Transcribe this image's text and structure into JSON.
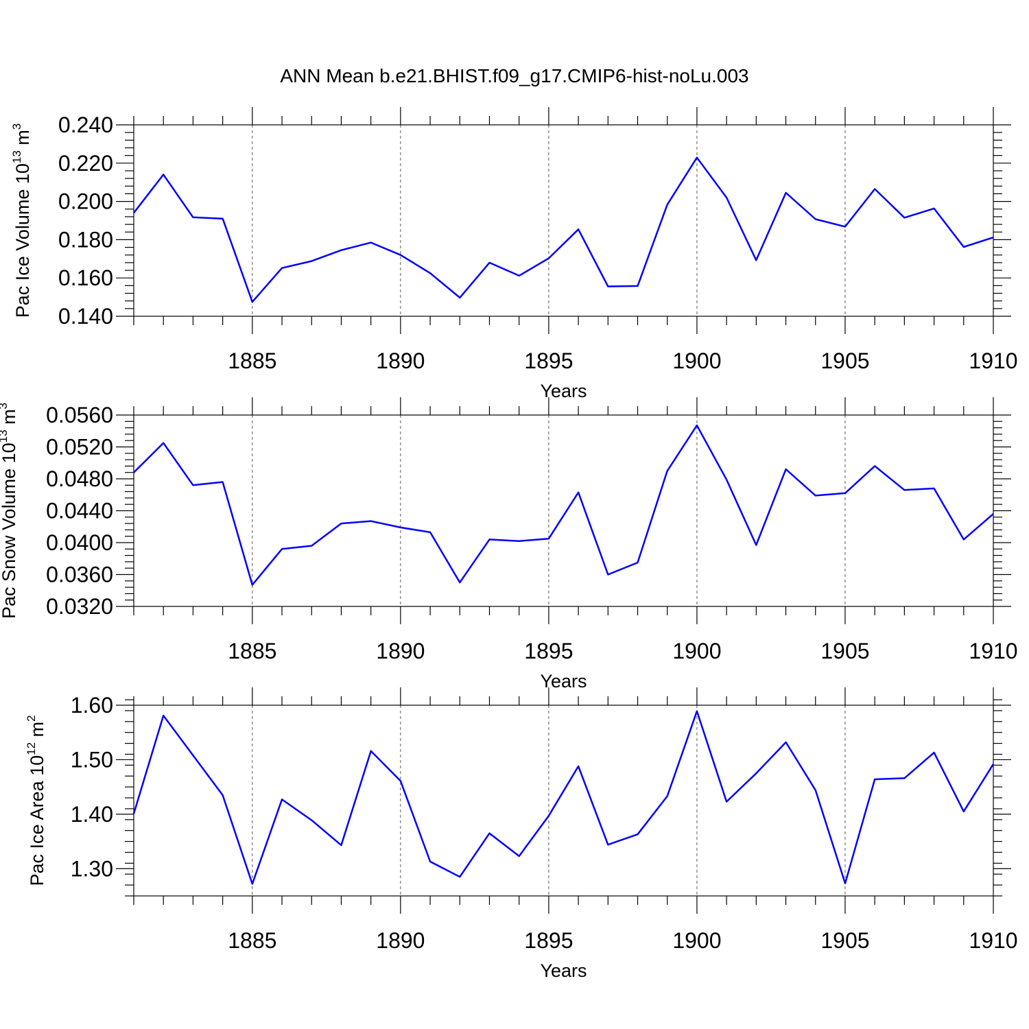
{
  "title": "ANN Mean b.e21.BHIST.f09_g17.CMIP6-hist-noLu.003",
  "colors": {
    "series": "#0000ff",
    "axis": "#000000",
    "grid": "#555555"
  },
  "chart_data": [
    {
      "type": "line",
      "id": "ice-volume",
      "ylabel": "Pac Ice Volume 10",
      "ylabel_sup": "13",
      "ylabel_unit": "m",
      "ylabel_unit_sup": "3",
      "xlabel": "Years",
      "xlim": [
        1881,
        1910
      ],
      "ylim": [
        0.14,
        0.24
      ],
      "yticks": [
        0.14,
        0.16,
        0.18,
        0.2,
        0.22,
        0.24
      ],
      "ytick_labels": [
        "0.140",
        "0.160",
        "0.180",
        "0.200",
        "0.220",
        "0.240"
      ],
      "xticks": [
        1885,
        1890,
        1895,
        1900,
        1905,
        1910
      ],
      "xtick_labels": [
        "1885",
        "1890",
        "1895",
        "1900",
        "1905",
        "1910"
      ],
      "grid_x": true,
      "x": [
        1881,
        1882,
        1883,
        1884,
        1885,
        1886,
        1887,
        1888,
        1889,
        1890,
        1891,
        1892,
        1893,
        1894,
        1895,
        1896,
        1897,
        1898,
        1899,
        1900,
        1901,
        1902,
        1903,
        1904,
        1905,
        1906,
        1907,
        1908,
        1909,
        1910
      ],
      "values": [
        0.194,
        0.214,
        0.1917,
        0.191,
        0.1475,
        0.1652,
        0.1688,
        0.1745,
        0.1785,
        0.172,
        0.1625,
        0.1497,
        0.168,
        0.1612,
        0.1703,
        0.1854,
        0.1556,
        0.1558,
        0.1983,
        0.2229,
        0.202,
        0.1693,
        0.2045,
        0.1907,
        0.1868,
        0.2065,
        0.1915,
        0.1963,
        0.1762,
        0.1812
      ]
    },
    {
      "type": "line",
      "id": "snow-volume",
      "ylabel": "Pac Snow Volume 10",
      "ylabel_sup": "13",
      "ylabel_unit": "m",
      "ylabel_unit_sup": "3",
      "xlabel": "Years",
      "xlim": [
        1881,
        1910
      ],
      "ylim": [
        0.032,
        0.056
      ],
      "yticks": [
        0.032,
        0.036,
        0.04,
        0.044,
        0.048,
        0.052,
        0.056
      ],
      "ytick_labels": [
        "0.0320",
        "0.0360",
        "0.0400",
        "0.0440",
        "0.0480",
        "0.0520",
        "0.0560"
      ],
      "xticks": [
        1885,
        1890,
        1895,
        1900,
        1905,
        1910
      ],
      "xtick_labels": [
        "1885",
        "1890",
        "1895",
        "1900",
        "1905",
        "1910"
      ],
      "grid_x": true,
      "x": [
        1881,
        1882,
        1883,
        1884,
        1885,
        1886,
        1887,
        1888,
        1889,
        1890,
        1891,
        1892,
        1893,
        1894,
        1895,
        1896,
        1897,
        1898,
        1899,
        1900,
        1901,
        1902,
        1903,
        1904,
        1905,
        1906,
        1907,
        1908,
        1909,
        1910
      ],
      "values": [
        0.0488,
        0.0525,
        0.0472,
        0.0476,
        0.0347,
        0.0392,
        0.0396,
        0.0424,
        0.0427,
        0.0419,
        0.0413,
        0.035,
        0.0404,
        0.0402,
        0.0405,
        0.0463,
        0.036,
        0.0375,
        0.049,
        0.0547,
        0.0479,
        0.0397,
        0.0492,
        0.0459,
        0.0462,
        0.0496,
        0.0466,
        0.0468,
        0.0404,
        0.0436
      ]
    },
    {
      "type": "line",
      "id": "ice-area",
      "ylabel": "Pac Ice Area 10",
      "ylabel_sup": "12",
      "ylabel_unit": "m",
      "ylabel_unit_sup": "2",
      "xlabel": "Years",
      "xlim": [
        1881,
        1910
      ],
      "ylim": [
        1.25,
        1.6
      ],
      "yticks": [
        1.3,
        1.4,
        1.5,
        1.6
      ],
      "ytick_labels": [
        "1.30",
        "1.40",
        "1.50",
        "1.60"
      ],
      "xticks": [
        1885,
        1890,
        1895,
        1900,
        1905,
        1910
      ],
      "xtick_labels": [
        "1885",
        "1890",
        "1895",
        "1900",
        "1905",
        "1910"
      ],
      "grid_x": true,
      "x": [
        1881,
        1882,
        1883,
        1884,
        1885,
        1886,
        1887,
        1888,
        1889,
        1890,
        1891,
        1892,
        1893,
        1894,
        1895,
        1896,
        1897,
        1898,
        1899,
        1900,
        1901,
        1902,
        1903,
        1904,
        1905,
        1906,
        1907,
        1908,
        1909,
        1910
      ],
      "values": [
        1.401,
        1.581,
        1.508,
        1.435,
        1.272,
        1.427,
        1.389,
        1.343,
        1.516,
        1.461,
        1.313,
        1.285,
        1.365,
        1.323,
        1.397,
        1.488,
        1.344,
        1.363,
        1.433,
        1.589,
        1.423,
        1.475,
        1.532,
        1.444,
        1.273,
        1.464,
        1.466,
        1.513,
        1.405,
        1.492
      ]
    }
  ]
}
